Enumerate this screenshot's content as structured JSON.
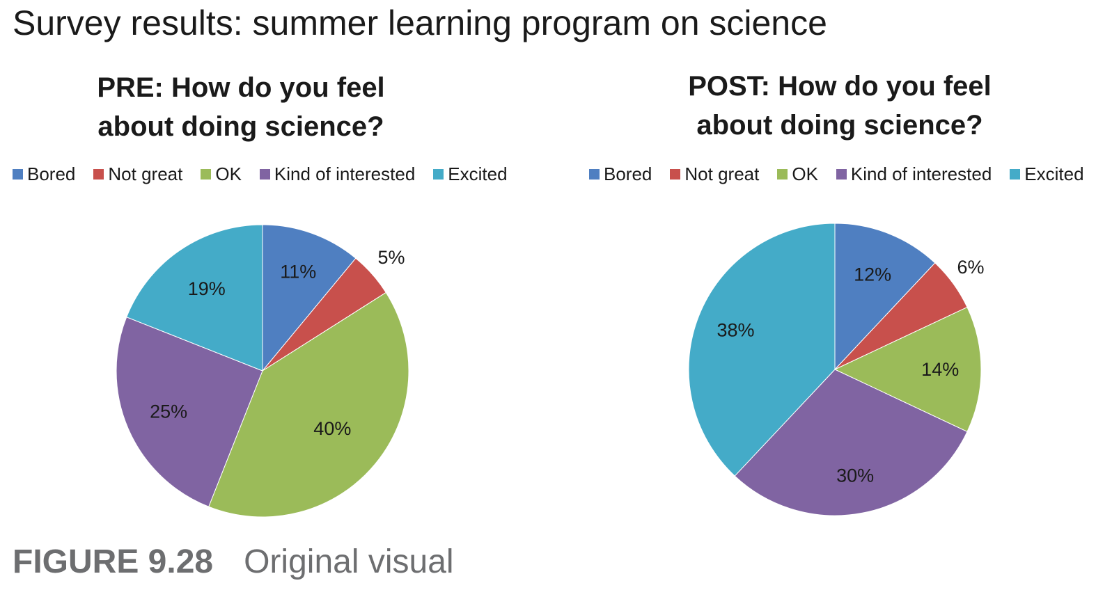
{
  "title": "Survey results: summer learning program on science",
  "caption": {
    "figure": "FIGURE 9.28",
    "text": "Original visual"
  },
  "chart_data": [
    {
      "type": "pie",
      "title": "PRE: How do you feel about doing science?",
      "title_lines": [
        "PRE: How do you feel",
        "about doing science?"
      ],
      "legend_position": "top",
      "categories": [
        "Bored",
        "Not great",
        "OK",
        "Kind of interested",
        "Excited"
      ],
      "values": [
        11,
        5,
        40,
        25,
        19
      ],
      "labels": [
        "11%",
        "5%",
        "40%",
        "25%",
        "19%"
      ],
      "colors": [
        "#4f7fc1",
        "#c8504c",
        "#9bbb59",
        "#8064a2",
        "#44abc8"
      ]
    },
    {
      "type": "pie",
      "title": "POST: How do you feel about doing science?",
      "title_lines": [
        "POST: How do you feel",
        "about doing science?"
      ],
      "legend_position": "top",
      "categories": [
        "Bored",
        "Not great",
        "OK",
        "Kind of interested",
        "Excited"
      ],
      "values": [
        12,
        6,
        14,
        30,
        38
      ],
      "labels": [
        "12%",
        "6%",
        "14%",
        "30%",
        "38%"
      ],
      "colors": [
        "#4f7fc1",
        "#c8504c",
        "#9bbb59",
        "#8064a2",
        "#44abc8"
      ]
    }
  ]
}
